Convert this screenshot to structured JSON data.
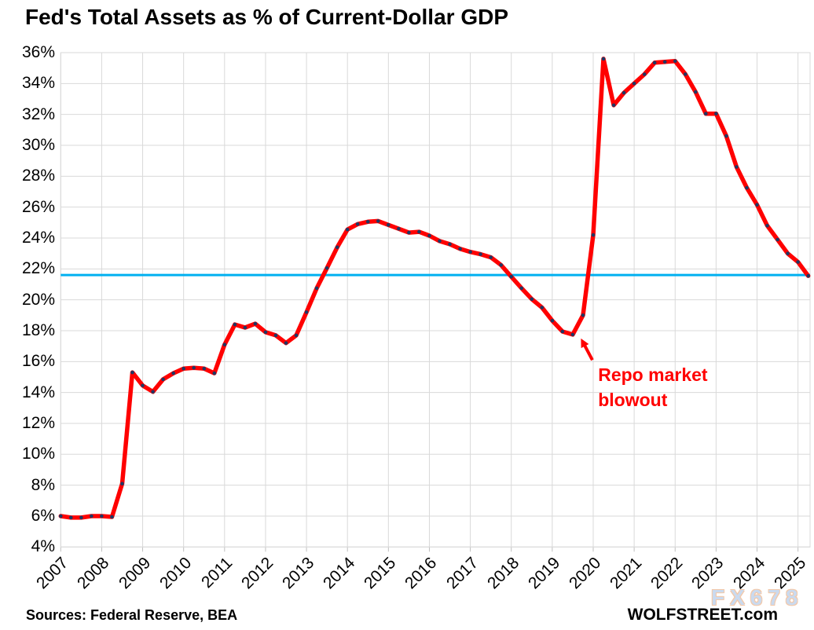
{
  "header": {
    "title": "Fed's Total Assets as % of Current-Dollar GDP"
  },
  "footer": {
    "sources": "Sources: Federal Reserve, BEA",
    "site": "WOLFSTREET.com"
  },
  "watermark": {
    "text": "FX678"
  },
  "colors": {
    "series_line": "#FF0000",
    "series_marker": "#1F3864",
    "reference_line": "#00B0F0",
    "grid": "#D9D9D9",
    "axis_text": "#000000",
    "annotation_text": "#FF0000",
    "watermark_fill": "#C6D7EE",
    "watermark_outline": "#F2C4A2"
  },
  "chart_data": {
    "type": "line",
    "title": "Fed's Total Assets as % of Current-Dollar GDP",
    "xlabel": "",
    "ylabel": "",
    "grid": true,
    "legend": false,
    "x_tick_labels": [
      "2007",
      "2008",
      "2009",
      "2010",
      "2011",
      "2012",
      "2013",
      "2014",
      "2015",
      "2016",
      "2017",
      "2018",
      "2019",
      "2020",
      "2021",
      "2022",
      "2023",
      "2024",
      "2025"
    ],
    "y_axis": {
      "min": 4,
      "max": 36,
      "tick_step": 2,
      "tick_suffix": "%"
    },
    "reference_line": {
      "value": 21.6
    },
    "series": [
      {
        "name": "Fed total assets as % of current-dollar GDP",
        "frequency": "quarterly",
        "start": "2007 Q1",
        "end": "2025 Q2",
        "values": [
          6.0,
          5.9,
          5.9,
          6.0,
          6.0,
          5.95,
          8.1,
          15.3,
          14.45,
          14.05,
          14.85,
          15.25,
          15.55,
          15.6,
          15.55,
          15.25,
          17.1,
          18.4,
          18.2,
          18.45,
          17.9,
          17.7,
          17.2,
          17.7,
          19.2,
          20.75,
          22.05,
          23.4,
          24.55,
          24.9,
          25.05,
          25.1,
          24.85,
          24.6,
          24.35,
          24.4,
          24.15,
          23.8,
          23.6,
          23.3,
          23.1,
          22.95,
          22.75,
          22.25,
          21.5,
          20.75,
          20.05,
          19.5,
          18.65,
          17.95,
          17.75,
          19.0,
          24.2,
          35.6,
          32.6,
          33.4,
          34.0,
          34.6,
          35.35,
          35.4,
          35.45,
          34.6,
          33.45,
          32.05,
          32.05,
          30.6,
          28.6,
          27.25,
          26.15,
          24.8,
          23.9,
          23.0,
          22.45,
          21.55
        ]
      }
    ],
    "annotation": {
      "text": "Repo market blowout",
      "text_anchor": {
        "year": 2020.12,
        "value": 15.95
      },
      "arrow_from": {
        "year": 2019.98,
        "value": 16.1
      },
      "arrow_to": {
        "year": 2019.7,
        "value": 17.5
      }
    }
  }
}
